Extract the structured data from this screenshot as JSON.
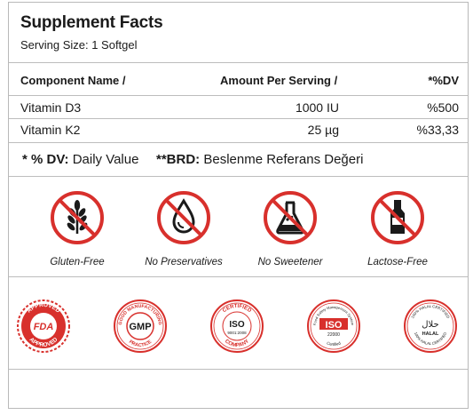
{
  "title": "Supplement Facts",
  "serving": "Serving Size:  1 Softgel",
  "table": {
    "headers": [
      "Component Name /",
      "Amount Per Serving /",
      "*%DV"
    ],
    "rows": [
      {
        "name": "Vitamin D3",
        "amount": "1000 IU",
        "dv": "%500"
      },
      {
        "name": "Vitamin K2",
        "amount": "25 µg",
        "dv": "%33,33"
      }
    ]
  },
  "legend": {
    "dv_key": "* % DV:",
    "dv_value": "Daily Value",
    "brd_key": "**BRD:",
    "brd_value": "Beslenme Referans Değeri"
  },
  "free_from": [
    {
      "icon": "wheat-icon",
      "label": "Gluten-Free"
    },
    {
      "icon": "drop-icon",
      "label": "No Preservatives"
    },
    {
      "icon": "flask-icon",
      "label": "No Sweetener"
    },
    {
      "icon": "bottle-icon",
      "label": "Lactose-Free"
    }
  ],
  "badges": {
    "fda": {
      "top": "APPROVED",
      "center": "FDA",
      "bottom": "APPROVED"
    },
    "gmp": {
      "top": "GOOD MANUFACTURING",
      "center": "GMP",
      "bottom": "PRACTICE"
    },
    "iso9001": {
      "top": "CERTIFIED",
      "center": "ISO",
      "sub": "9001:2008",
      "bottom": "COMPANY"
    },
    "iso22000": {
      "top": "Food Safety Management System",
      "center": "ISO",
      "sub": "22000",
      "bottom": "Certified"
    },
    "halal": {
      "top": "100% HALAL CERTIFIED",
      "center": "حلال",
      "sub": "HALAL",
      "bottom": "100% HALAL CERTIFIED"
    }
  },
  "colors": {
    "accent": "#d8302c",
    "text": "#1a1a1a",
    "rule": "#bdbdbd"
  }
}
